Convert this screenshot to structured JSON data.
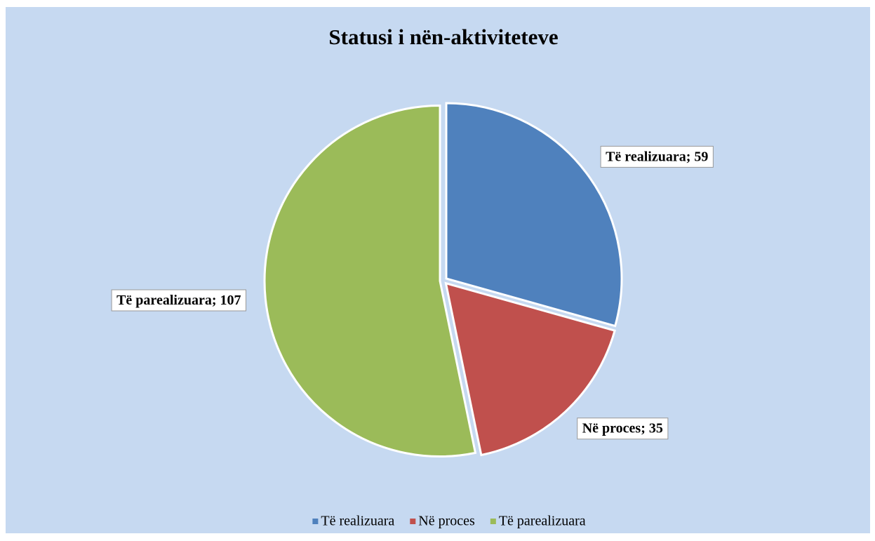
{
  "chart_data": {
    "type": "pie",
    "title": "Statusi i nën-aktiviteteve",
    "categories": [
      "Të realizuara",
      "Në proces",
      "Të parealizuara"
    ],
    "values": [
      59,
      35,
      107
    ],
    "value_labels": [
      "Të realizuara; 59",
      "Në proces; 35",
      "Të parealizuara; 107"
    ],
    "colors": [
      "#4f81bd",
      "#c0504d",
      "#9bbb59"
    ],
    "legend": "bottom"
  }
}
